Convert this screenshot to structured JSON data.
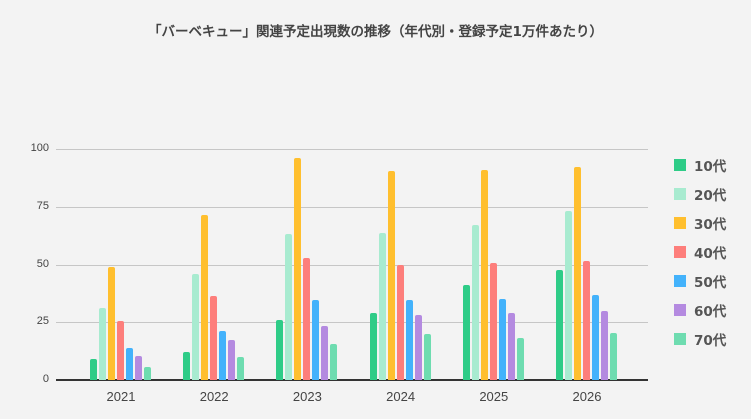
{
  "chart_data": {
    "type": "bar",
    "title": "「バーベキュー」関連予定出現数の推移（年代別・登録予定1万件あたり）",
    "xlabel": "",
    "ylabel": "",
    "ylim": [
      0,
      100
    ],
    "yticks": [
      0,
      25,
      50,
      75,
      100
    ],
    "grid": true,
    "legend_position": "right",
    "categories": [
      "2021",
      "2022",
      "2023",
      "2024",
      "2025",
      "2026"
    ],
    "series": [
      {
        "name": "10代",
        "color": "#2ecc87",
        "values": [
          9,
          12,
          26,
          29,
          41,
          47.5
        ]
      },
      {
        "name": "20代",
        "color": "#a8ebd0",
        "values": [
          31,
          46,
          63,
          63.5,
          67,
          73
        ]
      },
      {
        "name": "30代",
        "color": "#ffbf2e",
        "values": [
          49,
          71.5,
          96,
          90.5,
          91,
          92
        ]
      },
      {
        "name": "40代",
        "color": "#fd7e7b",
        "values": [
          25.5,
          36.5,
          53,
          50,
          50.5,
          51.5
        ]
      },
      {
        "name": "50代",
        "color": "#43b2fb",
        "values": [
          14,
          21,
          34.5,
          34.5,
          35,
          37
        ]
      },
      {
        "name": "60代",
        "color": "#b48ae0",
        "values": [
          10.5,
          17.5,
          23.5,
          28,
          29,
          30
        ]
      },
      {
        "name": "70代",
        "color": "#6edcb0",
        "values": [
          5.5,
          10,
          15.5,
          20,
          18,
          20.5
        ]
      }
    ]
  }
}
